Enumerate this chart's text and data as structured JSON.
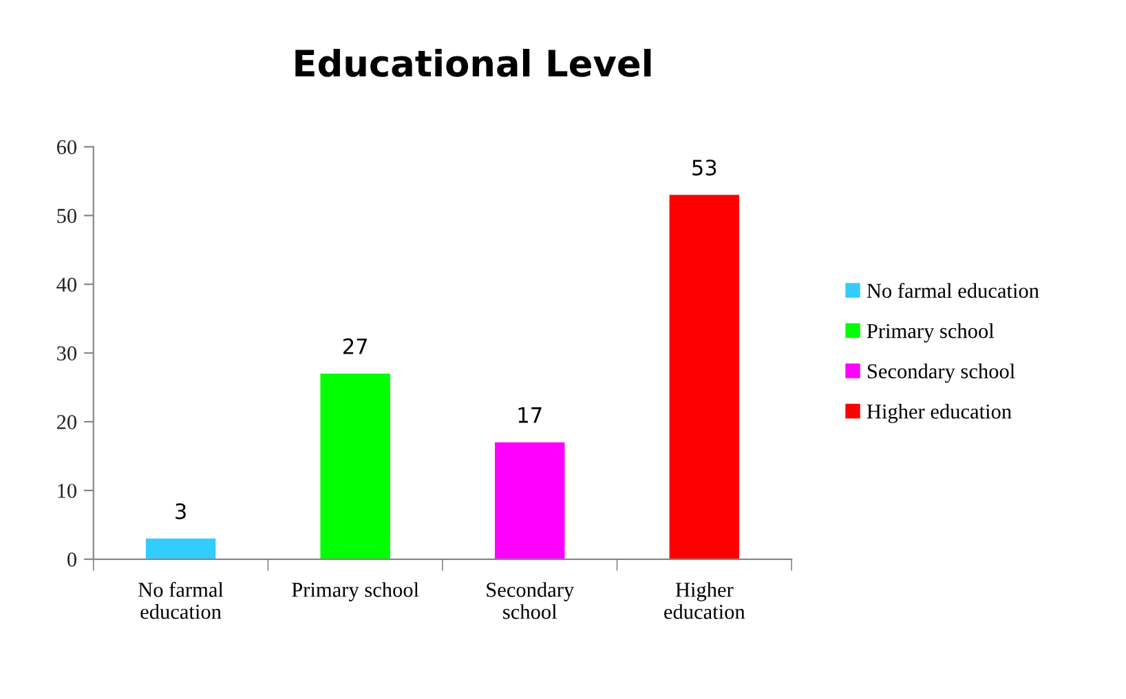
{
  "chart_data": {
    "type": "bar",
    "title": "Educational Level",
    "categories": [
      "No farmal education",
      "Primary school",
      "Secondary school",
      "Higher education"
    ],
    "series": [
      {
        "name": "No farmal education",
        "color": "#33ccff",
        "values": [
          3,
          null,
          null,
          null
        ]
      },
      {
        "name": "Primary school",
        "color": "#00ff00",
        "values": [
          null,
          27,
          null,
          null
        ]
      },
      {
        "name": "Secondary school",
        "color": "#ff00ff",
        "values": [
          null,
          null,
          17,
          null
        ]
      },
      {
        "name": "Higher education",
        "color": "#ff0000",
        "values": [
          null,
          null,
          null,
          53
        ]
      }
    ],
    "ylim": [
      0,
      60
    ],
    "yticks": [
      0,
      10,
      20,
      30,
      40,
      50,
      60
    ],
    "data_labels": true,
    "legend": "right",
    "grid": false
  }
}
